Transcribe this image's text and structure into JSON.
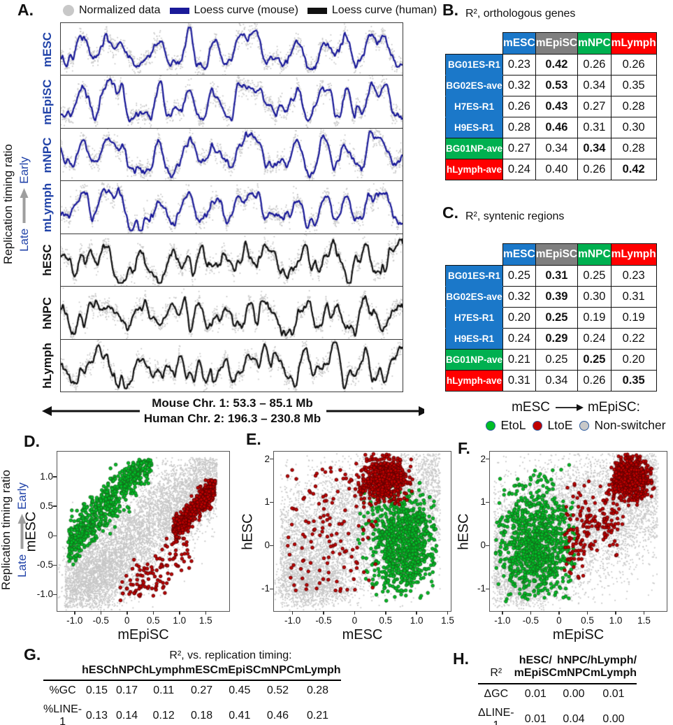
{
  "panel_labels": {
    "A": "A.",
    "B": "B.",
    "C": "C.",
    "D": "D.",
    "E": "E.",
    "F": "F.",
    "G": "G.",
    "H": "H."
  },
  "colors": {
    "blue_header": "#1B78C9",
    "gray_header": "#7F7F7F",
    "green_header": "#00B050",
    "red_header": "#FF0000",
    "loess_mouse": "#1A1A99",
    "loess_human": "#111111",
    "normalized_dot": "#C8C8C8",
    "mouse_label_blue": "#2042A8",
    "arrow_gray": "#9E9E9E",
    "scatter_gray": "#C7C7C7",
    "scatter_green": "#00BE26",
    "scatter_green_stroke": "#14691C",
    "scatter_red": "#C00000",
    "scatter_red_stroke": "#5A0000"
  },
  "panelA": {
    "legend": [
      {
        "name": "normalized-data",
        "swatch": "dot",
        "color": "#C8C8C8",
        "label": "Normalized data"
      },
      {
        "name": "loess-mouse",
        "swatch": "bar",
        "color": "#1A1A99",
        "label": "Loess curve (mouse)"
      },
      {
        "name": "loess-human",
        "swatch": "bar",
        "color": "#111111",
        "label": "Loess curve (human)"
      }
    ],
    "y_axis_title": "Replication timing ratio",
    "y_axis_late": "Late",
    "y_axis_early": "Early",
    "caption_line1": "Mouse Chr. 1: 53.3 – 85.1 Mb",
    "caption_line2": "Human Chr. 2: 196.3 – 230.8 Mb"
  },
  "panelF_legend": {
    "title_left": "mESC",
    "title_right": "mEpiSC:",
    "items": [
      {
        "label": "EtoL",
        "color": "#00BE26"
      },
      {
        "label": "LtoE",
        "color": "#C00000"
      },
      {
        "label": "Non-switcher",
        "color": "#C8C8C8"
      }
    ]
  },
  "chart_data": [
    {
      "id": "A",
      "type": "line",
      "description": "Seven stacked replication timing profiles (gray normalized data points with loess curve) over syntenic mouse/human region",
      "x_region_mouse": "Mouse Chr. 1: 53.3 – 85.1 Mb",
      "x_region_human": "Human Chr. 2: 196.3 – 230.8 Mb",
      "ylabel": "Replication timing ratio (Late to Early)",
      "style": {
        "mouse": {
          "hi": 0.72,
          "lo": 0.26,
          "wiggle": 0.3,
          "dot_color": "#C8C8C8"
        },
        "human": {
          "hi": 0.66,
          "lo": 0.32,
          "wiggle": 0.45,
          "dot_color": "#C8C8C8"
        }
      },
      "tracks": [
        {
          "label": "mESC",
          "species": "mouse",
          "curve_color": "#1A1A99",
          "label_color": "#2042A8",
          "group_seed": 20,
          "track_seed": 101
        },
        {
          "label": "mEpiSC",
          "species": "mouse",
          "curve_color": "#1A1A99",
          "label_color": "#2042A8",
          "group_seed": 20,
          "track_seed": 102
        },
        {
          "label": "mNPC",
          "species": "mouse",
          "curve_color": "#1A1A99",
          "label_color": "#2042A8",
          "group_seed": 20,
          "track_seed": 103
        },
        {
          "label": "mLymph",
          "species": "mouse",
          "curve_color": "#1A1A99",
          "label_color": "#2042A8",
          "group_seed": 20,
          "track_seed": 104
        },
        {
          "label": "hESC",
          "species": "human",
          "curve_color": "#111111",
          "label_color": "#111111",
          "group_seed": 77,
          "track_seed": 105
        },
        {
          "label": "hNPC",
          "species": "human",
          "curve_color": "#111111",
          "label_color": "#111111",
          "group_seed": 77,
          "track_seed": 106
        },
        {
          "label": "hLymph",
          "species": "human",
          "curve_color": "#111111",
          "label_color": "#111111",
          "group_seed": 77,
          "track_seed": 107
        }
      ]
    },
    {
      "id": "B",
      "type": "table",
      "title": "R², orthologous genes",
      "col_headers": [
        "mESC",
        "mEpiSC",
        "mNPC",
        "mLymph"
      ],
      "header_colors": [
        "#1B78C9",
        "#7F7F7F",
        "#00B050",
        "#FF0000"
      ],
      "rows": [
        {
          "label": "BG01ES-R1",
          "color": "#1B78C9",
          "values": [
            "0.23",
            "0.42",
            "0.26",
            "0.26"
          ],
          "bold": 1
        },
        {
          "label": "BG02ES-ave",
          "color": "#1B78C9",
          "values": [
            "0.32",
            "0.53",
            "0.34",
            "0.35"
          ],
          "bold": 1
        },
        {
          "label": "H7ES-R1",
          "color": "#1B78C9",
          "values": [
            "0.26",
            "0.43",
            "0.27",
            "0.28"
          ],
          "bold": 1
        },
        {
          "label": "H9ES-R1",
          "color": "#1B78C9",
          "values": [
            "0.28",
            "0.46",
            "0.31",
            "0.30"
          ],
          "bold": 1
        },
        {
          "label": "BG01NP-ave",
          "color": "#00B050",
          "values": [
            "0.27",
            "0.34",
            "0.34",
            "0.28"
          ],
          "bold": 2
        },
        {
          "label": "hLymph-ave",
          "color": "#FF0000",
          "values": [
            "0.24",
            "0.40",
            "0.26",
            "0.42"
          ],
          "bold": 3
        }
      ]
    },
    {
      "id": "C",
      "type": "table",
      "title": "R², syntenic regions",
      "col_headers": [
        "mESC",
        "mEpiSC",
        "mNPC",
        "mLymph"
      ],
      "header_colors": [
        "#1B78C9",
        "#7F7F7F",
        "#00B050",
        "#FF0000"
      ],
      "rows": [
        {
          "label": "BG01ES-R1",
          "color": "#1B78C9",
          "values": [
            "0.25",
            "0.31",
            "0.25",
            "0.23"
          ],
          "bold": 1
        },
        {
          "label": "BG02ES-ave",
          "color": "#1B78C9",
          "values": [
            "0.32",
            "0.39",
            "0.30",
            "0.31"
          ],
          "bold": 1
        },
        {
          "label": "H7ES-R1",
          "color": "#1B78C9",
          "values": [
            "0.20",
            "0.25",
            "0.19",
            "0.19"
          ],
          "bold": 1
        },
        {
          "label": "H9ES-R1",
          "color": "#1B78C9",
          "values": [
            "0.24",
            "0.29",
            "0.24",
            "0.22"
          ],
          "bold": 1
        },
        {
          "label": "BG01NP-ave",
          "color": "#00B050",
          "values": [
            "0.21",
            "0.25",
            "0.25",
            "0.20"
          ],
          "bold": 2
        },
        {
          "label": "hLymph-ave",
          "color": "#FF0000",
          "values": [
            "0.31",
            "0.34",
            "0.26",
            "0.35"
          ],
          "bold": 3
        }
      ]
    },
    {
      "id": "D",
      "type": "scatter",
      "xlabel": "mEpiSC",
      "ylabel": "mESC",
      "x_range": [
        -1.33,
        1.95
      ],
      "y_range": [
        -1.28,
        1.43
      ],
      "x_ticks": [
        "-1.0",
        "-0.5",
        "0",
        "0.5",
        "1.0",
        "1.5"
      ],
      "x_tick_vals": [
        -1,
        -0.5,
        0,
        0.5,
        1,
        1.5
      ],
      "y_ticks": [
        "1.0",
        "0.5",
        "0",
        "-0.5",
        "-1.0"
      ],
      "y_tick_vals": [
        1,
        0.5,
        0,
        -0.5,
        -1
      ],
      "clusters": [
        {
          "kind": "band",
          "n": 5400,
          "seed": 1,
          "x0": -1.18,
          "x1": 1.72,
          "slope": 0.72,
          "icept": -0.12,
          "sd": 0.4,
          "clamp_y": [
            -1.22,
            1.33
          ],
          "r": 1.05,
          "color": "#C7C7C7"
        },
        {
          "kind": "blob",
          "n": 900,
          "seed": 2,
          "cx": -0.55,
          "cy": -0.75,
          "sx": 0.33,
          "sy": 0.28,
          "r": 1.05,
          "color": "#C7C7C7"
        },
        {
          "kind": "band",
          "n": 680,
          "seed": 3,
          "x0": -1.12,
          "x1": 0.48,
          "slope": 1.0,
          "icept": 0.93,
          "sd": 0.2,
          "clamp_y": [
            -0.5,
            1.3
          ],
          "r": 2.3,
          "color": "#00BE26",
          "stroke": "#14691C"
        },
        {
          "kind": "band",
          "n": 110,
          "seed": 5,
          "x0": -0.15,
          "x1": 1.25,
          "slope": 0.75,
          "icept": -1.05,
          "sd": 0.25,
          "clamp_y": [
            -1.12,
            0.0
          ],
          "r": 2.3,
          "color": "#C00000",
          "stroke": "#5A0000"
        },
        {
          "kind": "band",
          "n": 520,
          "seed": 4,
          "x0": 0.88,
          "x1": 1.68,
          "slope": 1.0,
          "icept": -0.82,
          "sd": 0.11,
          "clamp_y": [
            -0.15,
            0.95
          ],
          "r": 2.3,
          "color": "#C00000",
          "stroke": "#5A0000"
        }
      ]
    },
    {
      "id": "E",
      "type": "scatter",
      "xlabel": "mESC",
      "ylabel": "hESC",
      "x_range": [
        -1.3,
        1.55
      ],
      "y_range": [
        -1.51,
        2.17
      ],
      "x_ticks": [
        "-1.0",
        "-0.5",
        "0",
        "0.5",
        "1.0",
        "1.5"
      ],
      "x_tick_vals": [
        -1,
        -0.5,
        0,
        0.5,
        1,
        1.5
      ],
      "y_ticks": [
        "2",
        "1",
        "0",
        "-1"
      ],
      "y_tick_vals": [
        2,
        1,
        0,
        -1
      ],
      "clusters": [
        {
          "kind": "band",
          "n": 5400,
          "seed": 11,
          "x0": -1.2,
          "x1": 1.38,
          "slope": 0.62,
          "icept": 0.45,
          "sd": 0.78,
          "clamp_y": [
            -1.42,
            2.12
          ],
          "r": 1.05,
          "color": "#C7C7C7"
        },
        {
          "kind": "blob",
          "n": 1000,
          "seed": 12,
          "cx": -0.65,
          "cy": -0.9,
          "sx": 0.3,
          "sy": 0.25,
          "r": 1.05,
          "color": "#C7C7C7"
        },
        {
          "kind": "blob",
          "n": 880,
          "seed": 13,
          "cx": 0.78,
          "cy": 0.05,
          "sx": 0.27,
          "sy": 0.6,
          "clamp_x": [
            0.02,
            1.32
          ],
          "clamp_y": [
            -1.28,
            1.45
          ],
          "r": 2.3,
          "color": "#00BE26",
          "stroke": "#14691C"
        },
        {
          "kind": "rect",
          "n": 150,
          "seed": 14,
          "x0": -1.08,
          "x1": 0.35,
          "y0": -1.05,
          "y1": 1.9,
          "r": 2.3,
          "color": "#C00000",
          "stroke": "#5A0000"
        },
        {
          "kind": "blob",
          "n": 640,
          "seed": 15,
          "cx": 0.48,
          "cy": 1.55,
          "sx": 0.17,
          "sy": 0.26,
          "clamp_x": [
            0.05,
            1.0
          ],
          "clamp_y": [
            0.95,
            2.15
          ],
          "r": 2.3,
          "color": "#C00000",
          "stroke": "#5A0000"
        }
      ]
    },
    {
      "id": "F",
      "type": "scatter",
      "xlabel": "mEpiSC",
      "ylabel": "hESC",
      "x_range": [
        -1.22,
        1.9
      ],
      "y_range": [
        -1.51,
        2.17
      ],
      "x_ticks": [
        "-1.0",
        "-0.5",
        "0",
        "0.5",
        "1.0",
        "1.5"
      ],
      "x_tick_vals": [
        -1,
        -0.5,
        0,
        0.5,
        1,
        1.5
      ],
      "y_ticks": [
        "2",
        "1",
        "0",
        "-1"
      ],
      "y_tick_vals": [
        2,
        1,
        0,
        -1
      ],
      "clusters": [
        {
          "kind": "band",
          "n": 5400,
          "seed": 21,
          "x0": -1.15,
          "x1": 1.75,
          "slope": 0.55,
          "icept": 0.42,
          "sd": 0.8,
          "clamp_y": [
            -1.42,
            2.12
          ],
          "r": 1.05,
          "color": "#C7C7C7"
        },
        {
          "kind": "blob",
          "n": 800,
          "seed": 22,
          "cx": -0.6,
          "cy": -0.85,
          "sx": 0.3,
          "sy": 0.27,
          "r": 1.05,
          "color": "#C7C7C7"
        },
        {
          "kind": "blob",
          "n": 900,
          "seed": 23,
          "cx": -0.42,
          "cy": 0.0,
          "sx": 0.34,
          "sy": 0.68,
          "clamp_x": [
            -1.12,
            0.28
          ],
          "clamp_y": [
            -1.32,
            1.95
          ],
          "r": 2.3,
          "color": "#00BE26",
          "stroke": "#14691C"
        },
        {
          "kind": "band",
          "n": 190,
          "seed": 24,
          "x0": 0.1,
          "x1": 1.15,
          "slope": 0.8,
          "icept": 0.0,
          "sd": 0.55,
          "clamp_y": [
            -0.75,
            1.5
          ],
          "r": 2.3,
          "color": "#C00000",
          "stroke": "#5A0000"
        },
        {
          "kind": "blob",
          "n": 620,
          "seed": 25,
          "cx": 1.27,
          "cy": 1.55,
          "sx": 0.16,
          "sy": 0.24,
          "clamp_x": [
            0.92,
            1.72
          ],
          "clamp_y": [
            0.9,
            2.12
          ],
          "r": 2.3,
          "color": "#C00000",
          "stroke": "#5A0000"
        }
      ]
    },
    {
      "id": "G",
      "type": "table",
      "title": "R², vs. replication timing:",
      "col_headers": [
        "hESC",
        "hNPC",
        "hLymph",
        "mESC",
        "mEpiSC",
        "mNPC",
        "mLymph"
      ],
      "rows": [
        {
          "label": "%GC",
          "values": [
            "0.15",
            "0.17",
            "0.11",
            "0.27",
            "0.45",
            "0.52",
            "0.28"
          ]
        },
        {
          "label": "%LINE-1",
          "values": [
            "0.13",
            "0.14",
            "0.12",
            "0.18",
            "0.41",
            "0.46",
            "0.21"
          ]
        }
      ]
    },
    {
      "id": "H",
      "type": "table",
      "corner": "R²",
      "col_headers": [
        "hESC/\nmEpiSC",
        "hNPC/\nmNPC",
        "hLymph/\nmLymph"
      ],
      "rows": [
        {
          "label": "ΔGC",
          "values": [
            "0.01",
            "0.00",
            "0.01"
          ]
        },
        {
          "label": "ΔLINE-1",
          "values": [
            "0.01",
            "0.04",
            "0.00"
          ]
        }
      ]
    }
  ]
}
